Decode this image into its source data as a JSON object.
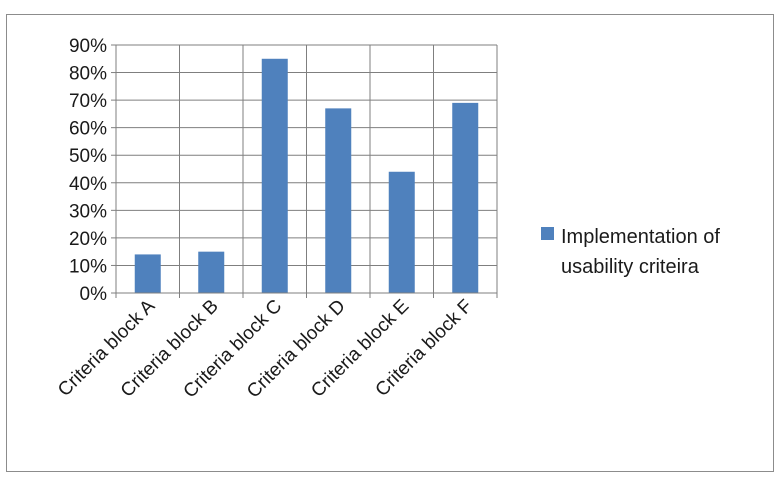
{
  "chart_data": {
    "type": "bar",
    "categories": [
      "Criteria block A",
      "Criteria block B",
      "Criteria block C",
      "Criteria block D",
      "Criteria block E",
      "Criteria block F"
    ],
    "series": [
      {
        "name": "Implementation of usability criteira",
        "values": [
          0.14,
          0.15,
          0.85,
          0.67,
          0.44,
          0.69
        ]
      }
    ],
    "ylim": [
      0,
      0.9
    ],
    "yticks": [
      0,
      0.1,
      0.2,
      0.3,
      0.4,
      0.5,
      0.6,
      0.7,
      0.8,
      0.9
    ],
    "ytick_labels": [
      "0%",
      "10%",
      "20%",
      "30%",
      "40%",
      "50%",
      "60%",
      "70%",
      "80%",
      "90%"
    ],
    "grid": true,
    "legend_position": "right",
    "legend_lines": [
      "Implementation of",
      "usability criteira"
    ],
    "colors": {
      "bar": "#4f81bd",
      "grid": "#7f7f7f",
      "axis": "#7f7f7f"
    }
  }
}
